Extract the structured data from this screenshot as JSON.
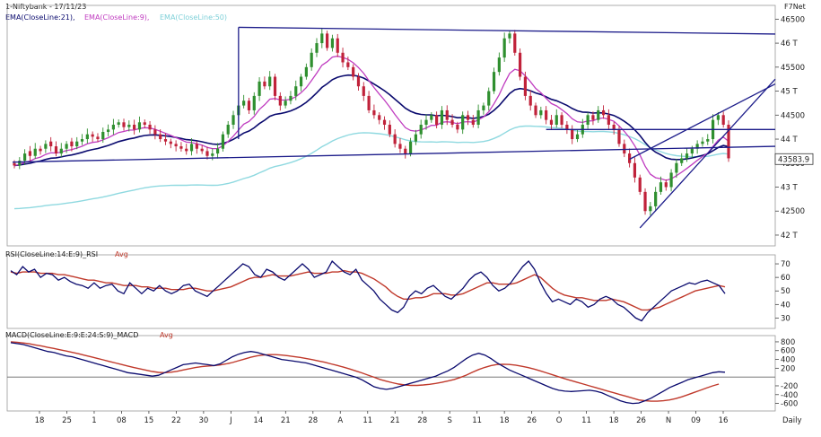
{
  "header": {
    "title": "1-Niftybank - 17/11/23",
    "brand": "F7Net",
    "ema21": "EMA(CloseLine:21),",
    "ema9": "EMA(CloseLine:9),",
    "ema50": "EMA(CloseLine:50)",
    "rsi": "RSI(CloseLine:14:E:9)_RSI",
    "rsi_avg": "Avg",
    "macd": "MACD(CloseLine:E:9:E:24:S:9)_MACD",
    "macd_avg": "Avg",
    "period": "Daily",
    "last_price": "43583.9"
  },
  "colors": {
    "bull": "#2f8f2f",
    "bear": "#c0223a",
    "ema21": "#0a0a6e",
    "ema9": "#c03cc0",
    "ema50": "#8fd9e0",
    "trend": "#1c1c8a",
    "rsi": "#0a0a6e",
    "avg": "#c0392b"
  },
  "chart_data": [
    {
      "type": "candlestick",
      "title": "1-Niftybank - 17/11/23",
      "x_ticks": [
        "18",
        "25",
        "1",
        "08",
        "15",
        "22",
        "30",
        "J",
        "14",
        "21",
        "28",
        "A",
        "11",
        "21",
        "28",
        "S",
        "11",
        "18",
        "26",
        "O",
        "11",
        "18",
        "26",
        "N",
        "09",
        "16"
      ],
      "y_ticks": [
        "46500",
        "46 T",
        "45500",
        "45 T",
        "44500",
        "44 T",
        "43500",
        "43 T",
        "42500",
        "42 T"
      ],
      "y_values": [
        46500,
        46000,
        45500,
        45000,
        44500,
        44000,
        43500,
        43000,
        42500,
        42000
      ],
      "ylim": [
        41850,
        46600
      ],
      "last_value": 43583.9,
      "closes": [
        43450,
        43550,
        43700,
        43650,
        43800,
        43750,
        43900,
        43850,
        43700,
        43800,
        43900,
        43850,
        43950,
        44000,
        44100,
        44050,
        44000,
        44150,
        44200,
        44300,
        44350,
        44250,
        44300,
        44200,
        44350,
        44300,
        44200,
        44100,
        44000,
        43950,
        43900,
        43850,
        43800,
        43750,
        43900,
        43800,
        43750,
        43650,
        43700,
        43800,
        44100,
        44300,
        44500,
        44700,
        44800,
        44600,
        44900,
        45200,
        45100,
        45300,
        44900,
        44700,
        44800,
        44900,
        45100,
        45300,
        45500,
        45800,
        46000,
        46200,
        45900,
        46100,
        45800,
        45600,
        45500,
        45300,
        45100,
        44900,
        44600,
        44500,
        44400,
        44300,
        44100,
        43900,
        43800,
        43700,
        43950,
        44100,
        44300,
        44400,
        44500,
        44300,
        44600,
        44400,
        44300,
        44200,
        44500,
        44400,
        44300,
        44600,
        44700,
        45000,
        45400,
        45700,
        46100,
        46200,
        45800,
        45300,
        44900,
        44700,
        44500,
        44600,
        44400,
        44300,
        44500,
        44300,
        44200,
        44000,
        44100,
        44300,
        44500,
        44400,
        44600,
        44500,
        44300,
        44200,
        43900,
        43700,
        43500,
        43200,
        42900,
        42500,
        42600,
        42900,
        43100,
        43000,
        43300,
        43500,
        43600,
        43700,
        43800,
        43900,
        43950,
        44000,
        44400,
        44500,
        44300,
        43600
      ],
      "opens": [
        43500,
        43450,
        43550,
        43750,
        43650,
        43800,
        43800,
        43950,
        43850,
        43700,
        43800,
        43950,
        43850,
        43950,
        44000,
        44100,
        44050,
        44000,
        44150,
        44200,
        44300,
        44350,
        44250,
        44300,
        44200,
        44350,
        44300,
        44200,
        44100,
        44000,
        43950,
        43900,
        43850,
        43800,
        43750,
        43900,
        43800,
        43750,
        43650,
        43700,
        43800,
        44100,
        44300,
        44500,
        44700,
        44800,
        44600,
        44900,
        45200,
        45100,
        45300,
        44900,
        44700,
        44800,
        44900,
        45100,
        45300,
        45500,
        45800,
        46000,
        46200,
        45900,
        46100,
        45800,
        45600,
        45500,
        45300,
        45100,
        44900,
        44600,
        44500,
        44400,
        44300,
        44100,
        43900,
        43800,
        43700,
        43950,
        44100,
        44300,
        44400,
        44500,
        44300,
        44600,
        44400,
        44300,
        44200,
        44500,
        44400,
        44300,
        44600,
        44700,
        45000,
        45400,
        45700,
        46100,
        46200,
        45800,
        45300,
        44900,
        44700,
        44500,
        44600,
        44400,
        44300,
        44500,
        44300,
        44200,
        44000,
        44100,
        44300,
        44500,
        44400,
        44600,
        44500,
        44300,
        44200,
        43900,
        43700,
        43500,
        43200,
        42900,
        42500,
        42600,
        42900,
        43100,
        43000,
        43300,
        43500,
        43600,
        43700,
        43800,
        43900,
        43950,
        44000,
        44400,
        44500,
        44300
      ]
    },
    {
      "type": "line",
      "title": "RSI(CloseLine:14:E:9)_RSI Avg",
      "y_ticks": [
        "70",
        "60",
        "50",
        "40",
        "30"
      ],
      "y_values": [
        70,
        60,
        50,
        40,
        30
      ],
      "ylim": [
        25,
        74
      ],
      "series": [
        {
          "name": "RSI",
          "values": [
            65,
            62,
            68,
            64,
            66,
            60,
            63,
            62,
            58,
            60,
            57,
            55,
            54,
            52,
            56,
            52,
            54,
            55,
            50,
            48,
            56,
            52,
            48,
            52,
            50,
            54,
            50,
            48,
            50,
            54,
            55,
            50,
            48,
            46,
            50,
            54,
            58,
            62,
            66,
            70,
            68,
            62,
            60,
            66,
            64,
            60,
            58,
            62,
            66,
            70,
            66,
            60,
            62,
            64,
            72,
            68,
            64,
            62,
            66,
            58,
            54,
            50,
            44,
            40,
            36,
            34,
            38,
            46,
            50,
            48,
            52,
            54,
            50,
            46,
            44,
            48,
            52,
            58,
            62,
            64,
            60,
            54,
            50,
            52,
            56,
            62,
            68,
            72,
            66,
            56,
            48,
            42,
            44,
            42,
            40,
            44,
            42,
            38,
            40,
            44,
            46,
            44,
            40,
            38,
            34,
            30,
            28,
            34,
            38,
            42,
            46,
            50,
            52,
            54,
            56,
            55,
            57,
            58,
            56,
            54,
            48
          ]
        },
        {
          "name": "Avg",
          "values": [
            64,
            63,
            64,
            64,
            64,
            63,
            63,
            63,
            62,
            62,
            61,
            60,
            59,
            58,
            58,
            57,
            56,
            56,
            55,
            54,
            54,
            54,
            53,
            53,
            52,
            52,
            52,
            51,
            51,
            51,
            52,
            52,
            51,
            50,
            50,
            51,
            52,
            53,
            55,
            57,
            59,
            60,
            60,
            61,
            62,
            61,
            61,
            61,
            62,
            63,
            64,
            63,
            63,
            63,
            64,
            64,
            65,
            64,
            64,
            63,
            61,
            59,
            56,
            53,
            49,
            46,
            44,
            44,
            45,
            45,
            46,
            48,
            48,
            48,
            47,
            47,
            48,
            50,
            52,
            54,
            56,
            56,
            55,
            55,
            55,
            56,
            58,
            60,
            62,
            60,
            56,
            52,
            49,
            47,
            46,
            45,
            45,
            44,
            43,
            43,
            43,
            44,
            43,
            42,
            40,
            38,
            36,
            36,
            37,
            38,
            40,
            42,
            44,
            46,
            48,
            50,
            51,
            52,
            53,
            54,
            53
          ]
        }
      ]
    },
    {
      "type": "line",
      "title": "MACD(CloseLine:E:9:E:24:S:9)_MACD Avg",
      "y_ticks": [
        "800",
        "600",
        "400",
        "200",
        "-200",
        "-400",
        "-600"
      ],
      "y_values": [
        800,
        600,
        400,
        200,
        -200,
        -400,
        -600
      ],
      "ylim": [
        -690,
        860
      ],
      "series": [
        {
          "name": "MACD",
          "values": [
            780,
            760,
            740,
            700,
            660,
            620,
            580,
            560,
            520,
            480,
            460,
            420,
            380,
            340,
            300,
            260,
            220,
            180,
            140,
            100,
            80,
            60,
            40,
            20,
            40,
            100,
            160,
            220,
            280,
            300,
            320,
            300,
            280,
            260,
            300,
            380,
            460,
            520,
            560,
            580,
            560,
            520,
            480,
            440,
            400,
            380,
            360,
            340,
            320,
            280,
            240,
            200,
            160,
            120,
            80,
            40,
            0,
            -60,
            -140,
            -220,
            -260,
            -280,
            -260,
            -220,
            -180,
            -140,
            -100,
            -60,
            -20,
            20,
            80,
            140,
            220,
            320,
            420,
            500,
            540,
            500,
            420,
            320,
            240,
            160,
            100,
            40,
            -20,
            -80,
            -140,
            -200,
            -260,
            -300,
            -320,
            -330,
            -320,
            -310,
            -300,
            -320,
            -360,
            -420,
            -480,
            -540,
            -580,
            -600,
            -590,
            -540,
            -480,
            -400,
            -320,
            -240,
            -180,
            -120,
            -60,
            -20,
            20,
            60,
            100,
            120,
            110
          ]
        },
        {
          "name": "Avg",
          "values": [
            800,
            790,
            775,
            755,
            730,
            705,
            675,
            650,
            620,
            590,
            560,
            530,
            495,
            460,
            425,
            390,
            355,
            320,
            285,
            250,
            215,
            185,
            155,
            125,
            105,
            100,
            110,
            130,
            160,
            190,
            215,
            235,
            250,
            260,
            275,
            300,
            330,
            370,
            410,
            450,
            480,
            500,
            510,
            510,
            500,
            485,
            465,
            445,
            420,
            395,
            365,
            335,
            300,
            265,
            225,
            185,
            140,
            95,
            45,
            -5,
            -55,
            -95,
            -130,
            -160,
            -180,
            -190,
            -190,
            -180,
            -165,
            -145,
            -120,
            -90,
            -55,
            -10,
            45,
            110,
            170,
            220,
            260,
            285,
            290,
            285,
            270,
            245,
            215,
            180,
            140,
            95,
            50,
            5,
            -40,
            -80,
            -120,
            -160,
            -200,
            -240,
            -280,
            -320,
            -360,
            -400,
            -440,
            -480,
            -520,
            -540,
            -550,
            -550,
            -540,
            -520,
            -490,
            -450,
            -400,
            -350,
            -300,
            -250,
            -200,
            -160
          ]
        }
      ]
    }
  ]
}
